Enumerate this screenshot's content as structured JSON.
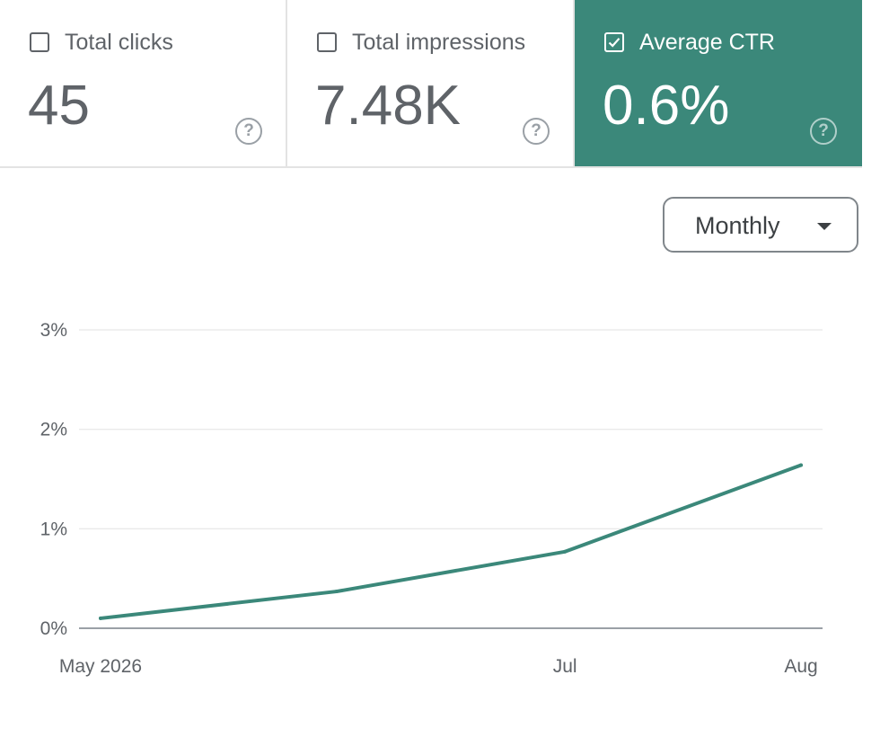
{
  "metrics": [
    {
      "label": "Total clicks",
      "value": "45",
      "checked": false
    },
    {
      "label": "Total impressions",
      "value": "7.48K",
      "checked": false
    },
    {
      "label": "Average CTR",
      "value": "0.6%",
      "checked": true,
      "color": "#3b887a"
    }
  ],
  "help_icon": "help-circle-icon",
  "period_select": {
    "value": "Monthly",
    "icon": "dropdown-caret-icon"
  },
  "chart_data": {
    "type": "line",
    "x": [
      "2026-05-01",
      "2026-06-01",
      "2026-07-01",
      "2026-08-01"
    ],
    "xtick_labels": [
      "May 2026",
      "Jul",
      "Aug"
    ],
    "xtick_at": [
      "2026-05-01",
      "2026-07-01",
      "2026-08-01"
    ],
    "series": [
      {
        "values": [
          0.1,
          0.37,
          0.77,
          1.64
        ],
        "color": "#3b887a"
      }
    ],
    "ylim": [
      0,
      3
    ],
    "yticks": [
      0,
      1,
      2,
      3
    ],
    "ytick_labels": [
      "0%",
      "1%",
      "2%",
      "3%"
    ],
    "grid": true,
    "title": "",
    "xlabel": "",
    "ylabel": ""
  }
}
